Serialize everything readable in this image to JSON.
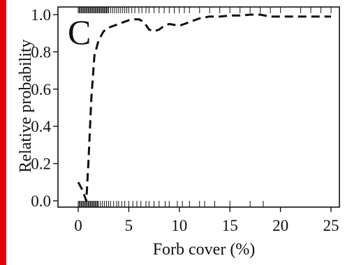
{
  "colors": {
    "accent_bar": "#e8000b",
    "line": "#111111",
    "axis": "#111111"
  },
  "chart_data": {
    "type": "line",
    "panel_label": "C",
    "xlabel": "Forb cover (%)",
    "ylabel": "Relative probability",
    "xlim": [
      0,
      25
    ],
    "ylim": [
      0,
      1
    ],
    "xticks": [
      0,
      5,
      10,
      15,
      20,
      25
    ],
    "yticks": [
      0.0,
      0.2,
      0.4,
      0.6,
      0.8,
      1.0
    ],
    "xtick_labels": [
      "0",
      "5",
      "10",
      "15",
      "20",
      "25"
    ],
    "ytick_labels": [
      "0.0",
      "0.2",
      "0.4",
      "0.6",
      "0.8",
      "1.0"
    ],
    "grid": false,
    "line_style": "dashed",
    "series": [
      {
        "x": [
          0.0,
          0.4,
          0.8,
          1.0,
          1.3,
          1.6,
          2.0,
          2.5,
          3.0,
          3.5,
          4.0,
          4.5,
          5.0,
          5.5,
          6.0,
          6.5,
          7.0,
          7.5,
          8.0,
          8.5,
          9.0,
          10.0,
          11.0,
          12.0,
          13.0,
          14.0,
          15.0,
          16.0,
          17.0,
          18.0,
          19.0,
          20.0,
          21.0,
          22.0,
          23.0,
          24.0,
          25.0
        ],
        "y": [
          0.1,
          0.06,
          0.0,
          0.2,
          0.55,
          0.78,
          0.86,
          0.91,
          0.93,
          0.94,
          0.95,
          0.96,
          0.97,
          0.975,
          0.975,
          0.96,
          0.92,
          0.91,
          0.92,
          0.94,
          0.95,
          0.94,
          0.96,
          0.98,
          0.99,
          0.99,
          0.995,
          0.995,
          1.0,
          1.0,
          0.99,
          0.99,
          0.99,
          0.99,
          0.99,
          0.99,
          0.99
        ]
      }
    ],
    "rug_top_x": [
      0.0,
      0.1,
      0.2,
      0.3,
      0.4,
      0.5,
      0.6,
      0.7,
      0.8,
      0.9,
      1.0,
      1.1,
      1.2,
      1.3,
      1.4,
      1.5,
      1.6,
      1.7,
      1.8,
      1.9,
      2.0,
      2.1,
      2.2,
      2.3,
      2.4,
      2.5,
      2.6,
      2.7,
      2.8,
      2.9,
      3.0,
      3.2,
      3.4,
      3.6,
      3.8,
      4.0,
      4.2,
      4.4,
      4.6,
      4.8,
      5.0,
      5.3,
      5.6,
      6.0,
      6.3,
      6.7,
      7.0,
      7.5,
      8.0,
      8.5,
      9.0,
      9.5,
      10.0,
      10.5,
      11.0,
      12.0,
      13.0,
      14.0,
      15.0,
      16.0,
      17.0,
      18.0,
      19.0,
      20.0,
      22.0,
      23.0,
      24.0,
      25.0
    ],
    "rug_bottom_x": [
      0.0,
      0.1,
      0.2,
      0.3,
      0.4,
      0.5,
      0.6,
      0.7,
      0.8,
      0.9,
      1.0,
      1.1,
      1.2,
      1.3,
      1.4,
      1.5,
      1.6,
      1.7,
      1.8,
      1.9,
      2.0,
      2.2,
      2.4,
      2.6,
      2.8,
      3.0,
      3.2,
      3.5,
      3.8,
      4.0,
      4.3,
      4.6,
      5.0,
      5.4,
      5.8,
      6.2,
      6.7,
      7.0,
      7.5,
      8.0,
      8.6,
      9.0,
      9.8,
      10.3,
      11.0,
      12.0,
      12.5,
      13.5,
      15.0,
      17.0,
      18.3
    ]
  }
}
